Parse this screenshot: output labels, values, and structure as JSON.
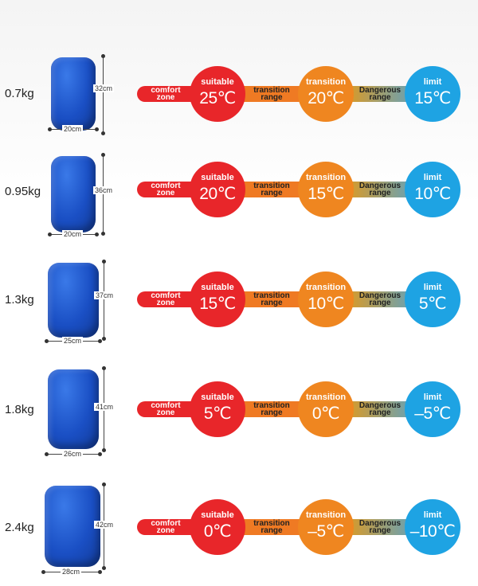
{
  "labels": {
    "comfort": "comfort zone",
    "comfort_l1": "comfort",
    "comfort_l2": "zone",
    "suitable": "suitable",
    "transition_range_l1": "transition",
    "transition_range_l2": "range",
    "transition": "transition",
    "dangerous_l1": "Dangerous",
    "dangerous_l2": "range",
    "limit": "limit"
  },
  "colors": {
    "red": "#e8262a",
    "orange": "#ef8620",
    "blue": "#1ea3e3",
    "bag": "#1a4fc4"
  },
  "rows": [
    {
      "weight": "0.7kg",
      "height": "32cm",
      "width": "20cm",
      "suitable": "25℃",
      "transition": "20℃",
      "limit": "15℃"
    },
    {
      "weight": "0.95kg",
      "height": "36cm",
      "width": "20cm",
      "suitable": "20℃",
      "transition": "15℃",
      "limit": "10℃"
    },
    {
      "weight": "1.3kg",
      "height": "37cm",
      "width": "25cm",
      "suitable": "15℃",
      "transition": "10℃",
      "limit": "5℃"
    },
    {
      "weight": "1.8kg",
      "height": "41cm",
      "width": "26cm",
      "suitable": "5℃",
      "transition": "0℃",
      "limit": "–5℃"
    },
    {
      "weight": "2.4kg",
      "height": "42cm",
      "width": "28cm",
      "suitable": "0℃",
      "transition": "–5℃",
      "limit": "–10℃"
    }
  ]
}
